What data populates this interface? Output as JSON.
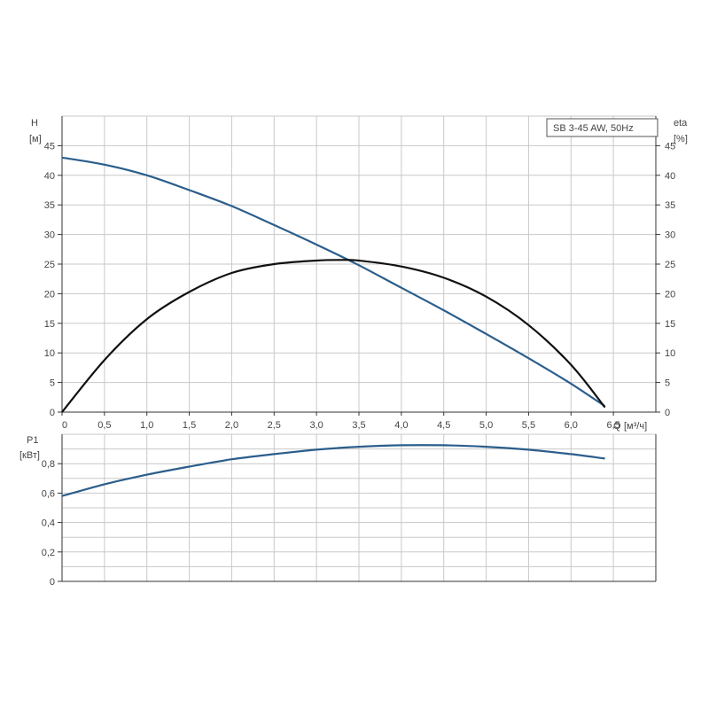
{
  "chart_data": [
    {
      "type": "line",
      "legend": "SB 3-45 AW, 50Hz",
      "legend_position": "top-right",
      "ylabel": "H",
      "yunit": "[м]",
      "y2label": "eta",
      "y2unit": "[%]",
      "xlabel": "Q",
      "xunit": "[м³/ч]",
      "xlim": [
        0,
        7
      ],
      "ylim": [
        0,
        50
      ],
      "y2lim": [
        0,
        50
      ],
      "grid": true,
      "x_ticks": [
        "0",
        "0,5",
        "1,0",
        "1,5",
        "2,0",
        "2,5",
        "3,0",
        "3,5",
        "4,0",
        "4,5",
        "5,0",
        "5,5",
        "6,0",
        "6,5"
      ],
      "x_tick_values": [
        0,
        0.5,
        1.0,
        1.5,
        2.0,
        2.5,
        3.0,
        3.5,
        4.0,
        4.5,
        5.0,
        5.5,
        6.0,
        6.5
      ],
      "y_ticks": [
        "0",
        "5",
        "10",
        "15",
        "20",
        "25",
        "30",
        "35",
        "40",
        "45"
      ],
      "y_tick_values": [
        0,
        5,
        10,
        15,
        20,
        25,
        30,
        35,
        40,
        45
      ],
      "y2_ticks": [
        "0",
        "5",
        "10",
        "15",
        "20",
        "25",
        "30",
        "35",
        "40",
        "45"
      ],
      "y2_tick_values": [
        0,
        5,
        10,
        15,
        20,
        25,
        30,
        35,
        40,
        45
      ],
      "series": [
        {
          "color": "#2b5e8c",
          "axis": "left",
          "x": [
            0,
            0.5,
            1.0,
            1.5,
            2.0,
            2.5,
            3.0,
            3.5,
            4.0,
            4.5,
            5.0,
            5.5,
            6.0,
            6.4
          ],
          "values": [
            43,
            41.8,
            40,
            37.5,
            34.8,
            31.6,
            28.3,
            24.8,
            21,
            17.2,
            13.2,
            9.1,
            4.8,
            1
          ]
        },
        {
          "color": "#111111",
          "axis": "right",
          "x": [
            0,
            0.5,
            1.0,
            1.5,
            2.0,
            2.5,
            3.0,
            3.3,
            3.5,
            4.0,
            4.5,
            5.0,
            5.5,
            6.0,
            6.4
          ],
          "values": [
            0,
            8.8,
            15.7,
            20.3,
            23.5,
            25.0,
            25.6,
            25.7,
            25.6,
            24.6,
            22.7,
            19.5,
            14.7,
            8,
            0.8
          ]
        }
      ]
    },
    {
      "type": "line",
      "ylabel": "P1",
      "yunit": "[кВт]",
      "xlim": [
        0,
        7
      ],
      "ylim": [
        0,
        1.0
      ],
      "grid": true,
      "y_ticks": [
        "0",
        "0,2",
        "0,4",
        "0,6",
        "0,8"
      ],
      "y_tick_values": [
        0,
        0.2,
        0.4,
        0.6,
        0.8
      ],
      "series": [
        {
          "color": "#2b5e8c",
          "x": [
            0,
            0.5,
            1.0,
            1.5,
            2.0,
            2.5,
            3.0,
            3.5,
            4.0,
            4.5,
            5.0,
            5.5,
            6.0,
            6.4
          ],
          "values": [
            0.58,
            0.66,
            0.725,
            0.78,
            0.83,
            0.865,
            0.895,
            0.915,
            0.925,
            0.925,
            0.915,
            0.895,
            0.865,
            0.835
          ]
        }
      ]
    }
  ]
}
